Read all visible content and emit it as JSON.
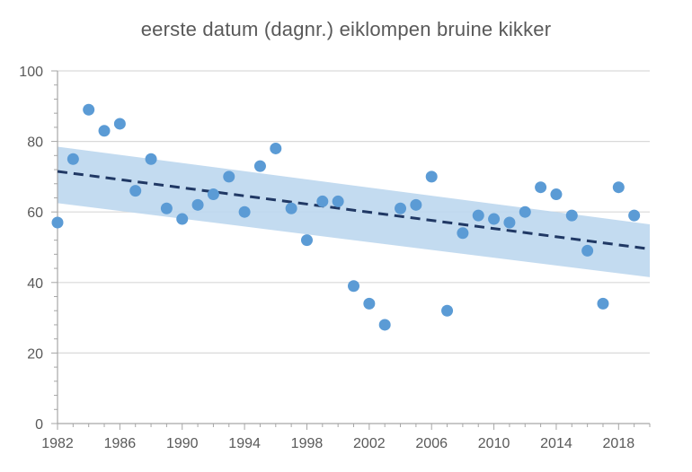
{
  "chart_data": {
    "type": "scatter",
    "title": "eerste datum (dagnr.) eiklompen bruine kikker",
    "xlabel": "",
    "ylabel": "",
    "xlim": [
      1982,
      2020
    ],
    "ylim": [
      0,
      100
    ],
    "x_ticks": [
      1982,
      1986,
      1990,
      1994,
      1998,
      2002,
      2006,
      2010,
      2014,
      2018
    ],
    "y_ticks": [
      0,
      20,
      40,
      60,
      80,
      100
    ],
    "grid": "horizontal",
    "points": [
      {
        "x": 1982,
        "y": 57
      },
      {
        "x": 1983,
        "y": 75
      },
      {
        "x": 1984,
        "y": 89
      },
      {
        "x": 1985,
        "y": 83
      },
      {
        "x": 1986,
        "y": 85
      },
      {
        "x": 1987,
        "y": 66
      },
      {
        "x": 1988,
        "y": 75
      },
      {
        "x": 1989,
        "y": 61
      },
      {
        "x": 1990,
        "y": 58
      },
      {
        "x": 1991,
        "y": 62
      },
      {
        "x": 1992,
        "y": 65
      },
      {
        "x": 1993,
        "y": 70
      },
      {
        "x": 1994,
        "y": 60
      },
      {
        "x": 1995,
        "y": 73
      },
      {
        "x": 1996,
        "y": 78
      },
      {
        "x": 1997,
        "y": 61
      },
      {
        "x": 1998,
        "y": 52
      },
      {
        "x": 1999,
        "y": 63
      },
      {
        "x": 2000,
        "y": 63
      },
      {
        "x": 2001,
        "y": 39
      },
      {
        "x": 2002,
        "y": 34
      },
      {
        "x": 2003,
        "y": 28
      },
      {
        "x": 2004,
        "y": 61
      },
      {
        "x": 2005,
        "y": 62
      },
      {
        "x": 2006,
        "y": 70
      },
      {
        "x": 2007,
        "y": 32
      },
      {
        "x": 2008,
        "y": 54
      },
      {
        "x": 2009,
        "y": 59
      },
      {
        "x": 2010,
        "y": 58
      },
      {
        "x": 2011,
        "y": 57
      },
      {
        "x": 2012,
        "y": 60
      },
      {
        "x": 2013,
        "y": 67
      },
      {
        "x": 2014,
        "y": 65
      },
      {
        "x": 2015,
        "y": 59
      },
      {
        "x": 2016,
        "y": 49
      },
      {
        "x": 2017,
        "y": 34
      },
      {
        "x": 2018,
        "y": 67
      },
      {
        "x": 2019,
        "y": 59
      }
    ],
    "trend_line": {
      "x": [
        1982,
        2020
      ],
      "y": [
        71.5,
        49.5
      ]
    },
    "confidence_band": {
      "x": [
        1982,
        2020
      ],
      "upper": [
        78.5,
        56.5
      ],
      "lower": [
        62.5,
        41.5
      ]
    },
    "colors": {
      "points": "#5b9bd5",
      "trend": "#203864",
      "band": "#bdd7ee",
      "grid": "#d9d9d9",
      "axis": "#a6a6a6",
      "text": "#595959"
    }
  }
}
